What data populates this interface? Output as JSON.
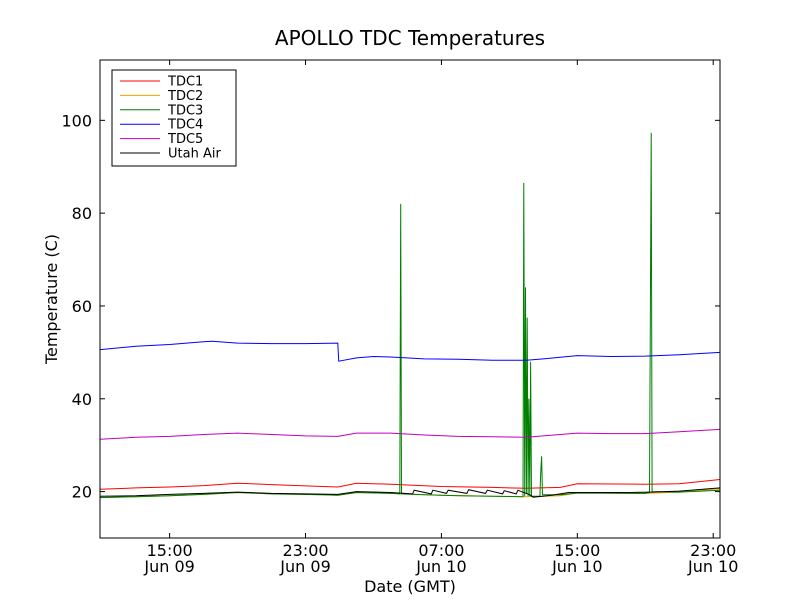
{
  "chart_data": {
    "type": "line",
    "title": "APOLLO TDC Temperatures",
    "xlabel": "Date (GMT)",
    "ylabel": "Temperature (C)",
    "x_unit": "hours since Jun 09 00:00 GMT",
    "xlim": [
      10.9,
      47.4
    ],
    "ylim": [
      10,
      113
    ],
    "yticks": [
      20,
      40,
      60,
      80,
      100
    ],
    "xticks": [
      {
        "x": 15,
        "line1": "15:00",
        "line2": "Jun 09"
      },
      {
        "x": 23,
        "line1": "23:00",
        "line2": "Jun 09"
      },
      {
        "x": 31,
        "line1": "07:00",
        "line2": "Jun 10"
      },
      {
        "x": 39,
        "line1": "15:00",
        "line2": "Jun 10"
      },
      {
        "x": 47,
        "line1": "23:00",
        "line2": "Jun 10"
      }
    ],
    "legend_position": "top-left",
    "series": [
      {
        "name": "TDC1",
        "color": "#ff0000",
        "points": [
          [
            10.9,
            20.5
          ],
          [
            13,
            20.8
          ],
          [
            15,
            21.0
          ],
          [
            17,
            21.3
          ],
          [
            19,
            21.8
          ],
          [
            21,
            21.5
          ],
          [
            24,
            21.1
          ],
          [
            24.9,
            21.0
          ],
          [
            26,
            21.8
          ],
          [
            28,
            21.6
          ],
          [
            31,
            21.1
          ],
          [
            34,
            20.9
          ],
          [
            36,
            20.7
          ],
          [
            38,
            20.9
          ],
          [
            39,
            21.7
          ],
          [
            43,
            21.6
          ],
          [
            45,
            21.7
          ],
          [
            47.4,
            22.6
          ]
        ]
      },
      {
        "name": "TDC2",
        "color": "#e8a400",
        "points": [
          [
            10.9,
            18.7
          ],
          [
            13,
            18.9
          ],
          [
            15,
            19.1
          ],
          [
            17,
            19.4
          ],
          [
            19,
            19.8
          ],
          [
            21,
            19.5
          ],
          [
            24,
            19.3
          ],
          [
            24.9,
            19.2
          ],
          [
            26,
            19.8
          ],
          [
            28,
            19.6
          ],
          [
            31,
            19.2
          ],
          [
            34,
            19.0
          ],
          [
            36,
            18.9
          ],
          [
            38,
            19.1
          ],
          [
            39,
            19.7
          ],
          [
            43,
            19.6
          ],
          [
            45,
            19.9
          ],
          [
            47.4,
            20.6
          ]
        ]
      },
      {
        "name": "TDC3",
        "color": "#007f00",
        "points": [
          [
            10.9,
            18.7
          ],
          [
            13,
            18.9
          ],
          [
            15,
            19.1
          ],
          [
            17,
            19.4
          ],
          [
            19,
            19.8
          ],
          [
            21,
            19.5
          ],
          [
            24,
            19.3
          ],
          [
            24.9,
            19.2
          ],
          [
            26,
            19.8
          ],
          [
            28,
            19.6
          ],
          [
            28.55,
            19.5
          ],
          [
            28.6,
            82
          ],
          [
            28.65,
            19.5
          ],
          [
            30,
            19.3
          ],
          [
            32,
            19.1
          ],
          [
            34,
            19.0
          ],
          [
            35.8,
            18.9
          ],
          [
            35.85,
            86.5
          ],
          [
            35.9,
            19.0
          ],
          [
            35.95,
            64
          ],
          [
            36.0,
            19.5
          ],
          [
            36.05,
            57.5
          ],
          [
            36.1,
            19.0
          ],
          [
            36.15,
            40
          ],
          [
            36.2,
            19.0
          ],
          [
            36.25,
            48
          ],
          [
            36.3,
            19.0
          ],
          [
            36.8,
            19.0
          ],
          [
            36.85,
            24.5
          ],
          [
            36.9,
            27.6
          ],
          [
            36.95,
            19.3
          ],
          [
            38,
            19.3
          ],
          [
            39,
            19.7
          ],
          [
            43,
            19.6
          ],
          [
            43.25,
            19.8
          ],
          [
            43.3,
            60.3
          ],
          [
            43.35,
            97.3
          ],
          [
            43.4,
            20.0
          ],
          [
            45,
            19.9
          ],
          [
            47.4,
            20.3
          ]
        ]
      },
      {
        "name": "TDC4",
        "color": "#0000ff",
        "points": [
          [
            10.9,
            50.6
          ],
          [
            13,
            51.3
          ],
          [
            15,
            51.7
          ],
          [
            17,
            52.3
          ],
          [
            17.5,
            52.4
          ],
          [
            19,
            52.0
          ],
          [
            21,
            51.9
          ],
          [
            23,
            51.9
          ],
          [
            24.9,
            52.0
          ],
          [
            24.95,
            48.1
          ],
          [
            26,
            48.8
          ],
          [
            27,
            49.1
          ],
          [
            28,
            49.0
          ],
          [
            30,
            48.6
          ],
          [
            32,
            48.5
          ],
          [
            34,
            48.3
          ],
          [
            36,
            48.3
          ],
          [
            37,
            48.6
          ],
          [
            39,
            49.3
          ],
          [
            41,
            49.1
          ],
          [
            43,
            49.2
          ],
          [
            45,
            49.5
          ],
          [
            47.4,
            50.0
          ]
        ]
      },
      {
        "name": "TDC5",
        "color": "#bf00bf",
        "points": [
          [
            10.9,
            31.3
          ],
          [
            13,
            31.7
          ],
          [
            15,
            31.9
          ],
          [
            17,
            32.3
          ],
          [
            19,
            32.6
          ],
          [
            21,
            32.3
          ],
          [
            23,
            32.0
          ],
          [
            24.9,
            31.9
          ],
          [
            26,
            32.6
          ],
          [
            28,
            32.6
          ],
          [
            30,
            32.2
          ],
          [
            32,
            31.9
          ],
          [
            34,
            31.8
          ],
          [
            36,
            31.7
          ],
          [
            37,
            32.0
          ],
          [
            39,
            32.6
          ],
          [
            41,
            32.5
          ],
          [
            43,
            32.5
          ],
          [
            45,
            32.9
          ],
          [
            47.4,
            33.4
          ]
        ]
      },
      {
        "name": "Utah Air",
        "color": "#000000",
        "points": [
          [
            10.9,
            19.0
          ],
          [
            13,
            19.1
          ],
          [
            15,
            19.4
          ],
          [
            17,
            19.6
          ],
          [
            19,
            19.9
          ],
          [
            21,
            19.6
          ],
          [
            23,
            19.5
          ],
          [
            24.9,
            19.4
          ],
          [
            26,
            20.0
          ],
          [
            28,
            19.8
          ],
          [
            29.3,
            19.5
          ],
          [
            29.4,
            20.3
          ],
          [
            30.4,
            19.5
          ],
          [
            30.5,
            20.3
          ],
          [
            31.3,
            19.6
          ],
          [
            31.4,
            20.3
          ],
          [
            32.5,
            19.6
          ],
          [
            32.6,
            20.4
          ],
          [
            33.6,
            19.6
          ],
          [
            33.7,
            20.3
          ],
          [
            34.6,
            19.5
          ],
          [
            34.7,
            20.2
          ],
          [
            35.4,
            19.5
          ],
          [
            35.5,
            20.3
          ],
          [
            36.2,
            19.3
          ],
          [
            36.4,
            18.8
          ],
          [
            37.5,
            19.2
          ],
          [
            38.5,
            19.8
          ],
          [
            40,
            19.8
          ],
          [
            42,
            19.8
          ],
          [
            43.3,
            19.9
          ],
          [
            45,
            20.1
          ],
          [
            47.4,
            20.8
          ]
        ]
      }
    ]
  }
}
